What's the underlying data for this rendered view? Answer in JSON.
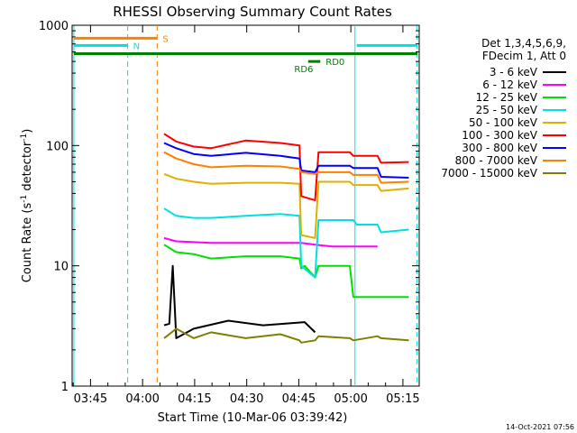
{
  "chart_data": {
    "type": "line",
    "title": "RHESSI Observing Summary Count Rates",
    "xlabel": "Start Time (10-Mar-06 03:39:42)",
    "ylabel_parts": [
      "Count Rate (s",
      "-1",
      " detector",
      "-1",
      ")"
    ],
    "yscale": "log",
    "ylim": [
      1,
      1000
    ],
    "xlim_minutes": [
      0,
      100
    ],
    "x_ticks": [
      {
        "t": 5.3,
        "label": "03:45"
      },
      {
        "t": 20.3,
        "label": "04:00"
      },
      {
        "t": 35.3,
        "label": "04:15"
      },
      {
        "t": 50.3,
        "label": "04:30"
      },
      {
        "t": 65.3,
        "label": "04:45"
      },
      {
        "t": 80.3,
        "label": "05:00"
      },
      {
        "t": 95.3,
        "label": "05:15"
      }
    ],
    "y_ticks": [
      {
        "v": 1,
        "label": "1"
      },
      {
        "v": 10,
        "label": "10"
      },
      {
        "v": 100,
        "label": "100"
      },
      {
        "v": 1000,
        "label": "1000"
      }
    ],
    "legend_header": [
      "Det 1,3,4,5,6,9,",
      "FDecim 1, Att 0"
    ],
    "legend_position": "right",
    "series": [
      {
        "name": "3 - 6 keV",
        "color": "#000000",
        "x": [
          26.5,
          28,
          29,
          30,
          35,
          45,
          55,
          67,
          70
        ],
        "y": [
          3.2,
          3.3,
          10,
          2.5,
          3.0,
          3.5,
          3.2,
          3.4,
          2.8
        ]
      },
      {
        "name": "6 - 12 keV",
        "color": "#ff00ff",
        "x": [
          26.5,
          30,
          40,
          50,
          60,
          66,
          70,
          75,
          76,
          82,
          88
        ],
        "y": [
          17,
          16,
          15.5,
          15.5,
          15.5,
          15.5,
          15,
          14.5,
          14.5,
          14.5,
          14.5
        ]
      },
      {
        "name": "12 - 25 keV",
        "color": "#00e000",
        "x": [
          26.5,
          30,
          35,
          40,
          50,
          60,
          65.5,
          66,
          67,
          70,
          71,
          80,
          81,
          88,
          89,
          97
        ],
        "y": [
          15,
          13,
          12.5,
          11.5,
          12,
          12,
          11.5,
          9.5,
          10,
          8,
          10,
          10,
          5.5,
          5.5,
          5.5,
          5.5
        ]
      },
      {
        "name": "25 - 50 keV",
        "color": "#00e0e0",
        "x": [
          26.5,
          30,
          35,
          40,
          50,
          60,
          65.5,
          66,
          70,
          71,
          81,
          82,
          88,
          89,
          97
        ],
        "y": [
          30,
          26,
          25,
          25,
          26,
          27,
          26,
          10,
          8,
          24,
          24,
          22,
          22,
          19,
          20
        ]
      },
      {
        "name": "50 - 100 keV",
        "color": "#e0b000",
        "x": [
          26.5,
          30,
          35,
          40,
          50,
          60,
          65.5,
          66,
          70,
          71,
          80,
          81,
          88,
          89,
          97
        ],
        "y": [
          58,
          53,
          50,
          48,
          49,
          49,
          48,
          18,
          17,
          50,
          50,
          47,
          47,
          42,
          44
        ]
      },
      {
        "name": "100 - 300 keV",
        "color": "#ff0000",
        "x": [
          26.5,
          30,
          35,
          40,
          50,
          60,
          65.5,
          66,
          70,
          71,
          80,
          81,
          88,
          89,
          97
        ],
        "y": [
          125,
          108,
          98,
          95,
          110,
          105,
          100,
          38,
          35,
          88,
          88,
          82,
          82,
          72,
          73
        ]
      },
      {
        "name": "300 - 800 keV",
        "color": "#0000ff",
        "x": [
          26.5,
          30,
          35,
          40,
          50,
          60,
          65.5,
          66,
          70,
          71,
          80,
          81,
          88,
          89,
          97
        ],
        "y": [
          105,
          95,
          85,
          82,
          87,
          82,
          78,
          62,
          60,
          68,
          68,
          65,
          65,
          55,
          54
        ]
      },
      {
        "name": "800 - 7000 keV",
        "color": "#ff8000",
        "x": [
          26.5,
          30,
          35,
          40,
          50,
          60,
          65.5,
          66,
          70,
          71,
          80,
          81,
          88,
          89,
          97
        ],
        "y": [
          88,
          78,
          70,
          66,
          68,
          67,
          64,
          60,
          58,
          60,
          60,
          57,
          57,
          49,
          50
        ]
      },
      {
        "name": "7000 - 15000 keV",
        "color": "#808000",
        "x": [
          26.5,
          30,
          35,
          40,
          50,
          60,
          65.5,
          66,
          70,
          71,
          80,
          81,
          88,
          89,
          97
        ],
        "y": [
          2.5,
          3.0,
          2.5,
          2.8,
          2.5,
          2.7,
          2.4,
          2.3,
          2.4,
          2.6,
          2.5,
          2.4,
          2.6,
          2.5,
          2.4
        ]
      }
    ],
    "bars": [
      {
        "label": "S",
        "color": "#ff8000",
        "x0": 0.5,
        "x1": 24.5,
        "y": 780
      },
      {
        "label": "N",
        "color": "#00e0e0",
        "x0": 0.5,
        "x1": 16,
        "y": 680
      },
      {
        "label": "",
        "color": "#00e0e0",
        "x0": 82,
        "x1": 99.5,
        "y": 680
      },
      {
        "label": "",
        "color": "#008000",
        "x0": 0.5,
        "x1": 99.5,
        "y": 580
      },
      {
        "label": "RD0",
        "color": "#008000",
        "x0": 68,
        "x1": 71.5,
        "y": 500
      }
    ],
    "vlines": [
      {
        "t": 0.5,
        "color": "#00e0e0",
        "style": "solid"
      },
      {
        "t": 16,
        "color": "#00e0e0",
        "style": "dashed"
      },
      {
        "t": 24.5,
        "color": "#ff8000",
        "style": "dashed"
      },
      {
        "t": 81.5,
        "color": "#00e0e0",
        "style": "solid"
      },
      {
        "t": 99.3,
        "color": "#00e0e0",
        "style": "dashed"
      }
    ],
    "annotations": [
      "RD6"
    ],
    "timestamp": "14-Oct-2021 07:56"
  }
}
